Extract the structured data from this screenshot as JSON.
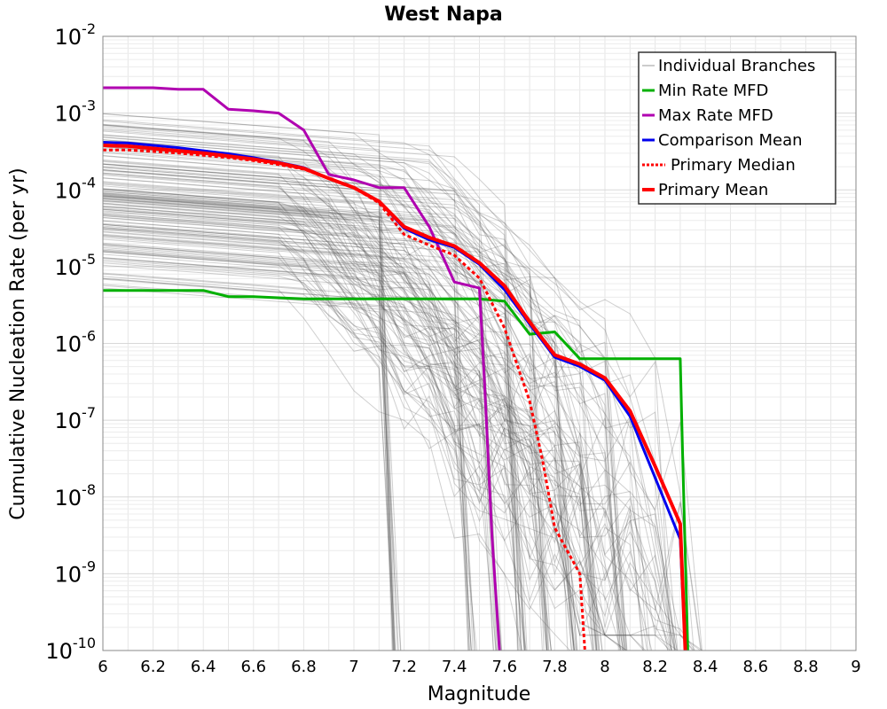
{
  "chart_data": {
    "type": "line",
    "title": "West Napa",
    "xlabel": "Magnitude",
    "ylabel": "Cumulative Nucleation Rate (per yr)",
    "xlim": [
      6,
      9
    ],
    "ylim_exponent": [
      -10,
      -2
    ],
    "yscale": "log",
    "grid": true,
    "legend_position": "top-right",
    "x_ticks": [
      "6",
      "6.2",
      "6.4",
      "6.6",
      "6.8",
      "7",
      "7.2",
      "7.4",
      "7.6",
      "7.8",
      "8",
      "8.2",
      "8.4",
      "8.6",
      "8.8",
      "9"
    ],
    "y_ticks": [
      {
        "base": "10",
        "exp": "-2",
        "value": -2
      },
      {
        "base": "10",
        "exp": "-3",
        "value": -3
      },
      {
        "base": "10",
        "exp": "-4",
        "value": -4
      },
      {
        "base": "10",
        "exp": "-5",
        "value": -5
      },
      {
        "base": "10",
        "exp": "-6",
        "value": -6
      },
      {
        "base": "10",
        "exp": "-7",
        "value": -7
      },
      {
        "base": "10",
        "exp": "-8",
        "value": -8
      },
      {
        "base": "10",
        "exp": "-9",
        "value": -9
      },
      {
        "base": "10",
        "exp": "-10",
        "value": -10
      }
    ],
    "series": [
      {
        "name": "Min Rate MFD",
        "color": "#00b000",
        "dash": "",
        "width": 3,
        "points": [
          [
            6.0,
            -5.31
          ],
          [
            6.4,
            -5.31
          ],
          [
            6.5,
            -5.39
          ],
          [
            6.6,
            -5.39
          ],
          [
            6.8,
            -5.42
          ],
          [
            7.0,
            -5.42
          ],
          [
            7.2,
            -5.42
          ],
          [
            7.4,
            -5.42
          ],
          [
            7.5,
            -5.42
          ],
          [
            7.6,
            -5.45
          ],
          [
            7.7,
            -5.88
          ],
          [
            7.8,
            -5.85
          ],
          [
            7.9,
            -6.2
          ],
          [
            8.0,
            -6.2
          ],
          [
            8.1,
            -6.2
          ],
          [
            8.2,
            -6.2
          ],
          [
            8.3,
            -6.2
          ],
          [
            8.31,
            -7.5
          ],
          [
            8.33,
            -10.0
          ]
        ]
      },
      {
        "name": "Max Rate MFD",
        "color": "#b000b0",
        "dash": "",
        "width": 3,
        "points": [
          [
            6.0,
            -2.67
          ],
          [
            6.2,
            -2.67
          ],
          [
            6.3,
            -2.69
          ],
          [
            6.4,
            -2.69
          ],
          [
            6.5,
            -2.95
          ],
          [
            6.6,
            -2.97
          ],
          [
            6.7,
            -3.0
          ],
          [
            6.8,
            -3.22
          ],
          [
            6.9,
            -3.8
          ],
          [
            7.0,
            -3.87
          ],
          [
            7.1,
            -3.97
          ],
          [
            7.2,
            -3.97
          ],
          [
            7.3,
            -4.48
          ],
          [
            7.4,
            -5.2
          ],
          [
            7.5,
            -5.28
          ],
          [
            7.52,
            -6.5
          ],
          [
            7.55,
            -8.5
          ],
          [
            7.58,
            -10.0
          ]
        ]
      },
      {
        "name": "Comparison Mean",
        "color": "#0000ee",
        "dash": "",
        "width": 3,
        "points": [
          [
            6.0,
            -3.38
          ],
          [
            6.1,
            -3.39
          ],
          [
            6.2,
            -3.42
          ],
          [
            6.3,
            -3.45
          ],
          [
            6.4,
            -3.49
          ],
          [
            6.5,
            -3.53
          ],
          [
            6.6,
            -3.58
          ],
          [
            6.7,
            -3.64
          ],
          [
            6.8,
            -3.71
          ],
          [
            6.9,
            -3.85
          ],
          [
            7.0,
            -3.97
          ],
          [
            7.1,
            -4.15
          ],
          [
            7.2,
            -4.5
          ],
          [
            7.3,
            -4.65
          ],
          [
            7.4,
            -4.75
          ],
          [
            7.5,
            -4.97
          ],
          [
            7.6,
            -5.3
          ],
          [
            7.7,
            -5.75
          ],
          [
            7.8,
            -6.18
          ],
          [
            7.9,
            -6.3
          ],
          [
            8.0,
            -6.48
          ],
          [
            8.1,
            -6.95
          ],
          [
            8.2,
            -7.75
          ],
          [
            8.3,
            -8.55
          ],
          [
            8.32,
            -10.0
          ]
        ]
      },
      {
        "name": "Primary Median",
        "color": "#ff0000",
        "dash": "4,3",
        "width": 3,
        "points": [
          [
            6.0,
            -3.48
          ],
          [
            6.1,
            -3.48
          ],
          [
            6.2,
            -3.5
          ],
          [
            6.3,
            -3.52
          ],
          [
            6.4,
            -3.55
          ],
          [
            6.5,
            -3.58
          ],
          [
            6.6,
            -3.62
          ],
          [
            6.7,
            -3.67
          ],
          [
            6.8,
            -3.73
          ],
          [
            6.9,
            -3.85
          ],
          [
            7.0,
            -3.97
          ],
          [
            7.1,
            -4.17
          ],
          [
            7.2,
            -4.58
          ],
          [
            7.3,
            -4.72
          ],
          [
            7.4,
            -4.85
          ],
          [
            7.5,
            -5.15
          ],
          [
            7.6,
            -5.8
          ],
          [
            7.7,
            -6.75
          ],
          [
            7.75,
            -7.5
          ],
          [
            7.8,
            -8.4
          ],
          [
            7.85,
            -8.7
          ],
          [
            7.9,
            -9.0
          ],
          [
            7.92,
            -10.0
          ]
        ]
      },
      {
        "name": "Primary Mean",
        "color": "#ff0000",
        "dash": "",
        "width": 4,
        "points": [
          [
            6.0,
            -3.42
          ],
          [
            6.1,
            -3.43
          ],
          [
            6.2,
            -3.46
          ],
          [
            6.3,
            -3.49
          ],
          [
            6.4,
            -3.52
          ],
          [
            6.5,
            -3.56
          ],
          [
            6.6,
            -3.6
          ],
          [
            6.7,
            -3.65
          ],
          [
            6.8,
            -3.72
          ],
          [
            6.9,
            -3.85
          ],
          [
            7.0,
            -3.97
          ],
          [
            7.1,
            -4.15
          ],
          [
            7.2,
            -4.48
          ],
          [
            7.3,
            -4.62
          ],
          [
            7.4,
            -4.73
          ],
          [
            7.5,
            -4.95
          ],
          [
            7.6,
            -5.25
          ],
          [
            7.7,
            -5.72
          ],
          [
            7.8,
            -6.15
          ],
          [
            7.9,
            -6.27
          ],
          [
            8.0,
            -6.45
          ],
          [
            8.1,
            -6.88
          ],
          [
            8.2,
            -7.6
          ],
          [
            8.3,
            -8.35
          ],
          [
            8.32,
            -10.0
          ]
        ]
      }
    ],
    "individual_branches": {
      "name": "Individual Branches",
      "color": "#555555",
      "count": 150
    }
  }
}
